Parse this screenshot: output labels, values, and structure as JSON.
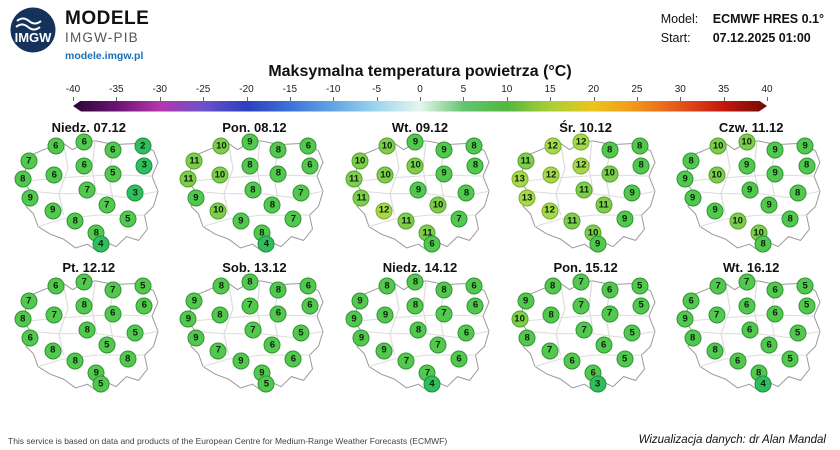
{
  "header": {
    "logo_text": "IMGW",
    "brand": "MODELE",
    "brand_sub": "IMGW-PIB",
    "brand_url": "modele.imgw.pl",
    "model_label": "Model:",
    "model_value": "ECMWF HRES 0.1°",
    "start_label": "Start:",
    "start_value": "07.12.2025 01:00"
  },
  "title": "Maksymalna temperatura powietrza (°C)",
  "colorbar": {
    "ticks": [
      -40,
      -35,
      -30,
      -25,
      -20,
      -15,
      -10,
      -5,
      0,
      5,
      10,
      15,
      20,
      25,
      30,
      35,
      40
    ],
    "stops": [
      {
        "t": -40,
        "c": "#2b0636"
      },
      {
        "t": -35,
        "c": "#6a1472"
      },
      {
        "t": -30,
        "c": "#b535ae"
      },
      {
        "t": -25,
        "c": "#6a52c9"
      },
      {
        "t": -20,
        "c": "#2b3fbf"
      },
      {
        "t": -15,
        "c": "#3d72d9"
      },
      {
        "t": -10,
        "c": "#62a6e3"
      },
      {
        "t": -5,
        "c": "#9fd6ee"
      },
      {
        "t": 0,
        "c": "#e6f5ec"
      },
      {
        "t": 5,
        "c": "#63c46f"
      },
      {
        "t": 10,
        "c": "#53b83f"
      },
      {
        "t": 15,
        "c": "#a9cf35"
      },
      {
        "t": 20,
        "c": "#ecc51c"
      },
      {
        "t": 25,
        "c": "#f1931b"
      },
      {
        "t": 30,
        "c": "#e5541b"
      },
      {
        "t": 35,
        "c": "#c5160e"
      },
      {
        "t": 40,
        "c": "#700b06"
      }
    ]
  },
  "footer": {
    "left": "This service is based on data and products of the European Centre for Medium-Range Weather Forecasts (ECMWF)",
    "right": "Wizualizacja danych: dr Alan Mandal"
  },
  "chart_data": {
    "type": "map",
    "title": "Maksymalna temperatura powietrza (°C)",
    "unit": "°C",
    "model": "ECMWF HRES 0.1°",
    "run_start": "07.12.2025 01:00",
    "scale_domain": [
      -40,
      40
    ],
    "legend_position": "top",
    "points": [
      [
        10,
        21
      ],
      [
        28,
        8
      ],
      [
        47,
        5
      ],
      [
        66,
        12
      ],
      [
        86,
        8
      ],
      [
        6,
        37
      ],
      [
        27,
        33
      ],
      [
        47,
        25
      ],
      [
        66,
        32
      ],
      [
        87,
        25
      ],
      [
        11,
        53
      ],
      [
        49,
        46
      ],
      [
        81,
        49
      ],
      [
        26,
        64
      ],
      [
        41,
        73
      ],
      [
        62,
        59
      ],
      [
        55,
        83
      ],
      [
        76,
        71
      ],
      [
        58,
        93
      ]
    ],
    "days": [
      {
        "label": "Niedz. 07.12",
        "values": [
          7,
          6,
          6,
          6,
          2,
          8,
          6,
          6,
          5,
          3,
          9,
          7,
          3,
          9,
          8,
          7,
          8,
          5,
          4
        ]
      },
      {
        "label": "Pon. 08.12",
        "values": [
          11,
          10,
          9,
          8,
          6,
          11,
          10,
          8,
          8,
          6,
          9,
          8,
          7,
          10,
          9,
          8,
          8,
          7,
          4
        ]
      },
      {
        "label": "Wt. 09.12",
        "values": [
          10,
          10,
          9,
          9,
          8,
          11,
          10,
          10,
          9,
          8,
          11,
          9,
          8,
          12,
          11,
          10,
          11,
          7,
          6
        ]
      },
      {
        "label": "Śr. 10.12",
        "values": [
          11,
          12,
          12,
          8,
          8,
          13,
          12,
          12,
          10,
          8,
          13,
          11,
          9,
          12,
          11,
          11,
          10,
          9,
          9
        ]
      },
      {
        "label": "Czw. 11.12",
        "values": [
          8,
          10,
          10,
          9,
          9,
          9,
          10,
          9,
          9,
          8,
          9,
          9,
          8,
          9,
          10,
          9,
          10,
          8,
          8
        ]
      },
      {
        "label": "Pt. 12.12",
        "values": [
          7,
          6,
          7,
          7,
          5,
          8,
          7,
          8,
          6,
          6,
          6,
          8,
          5,
          8,
          8,
          5,
          9,
          8,
          5
        ]
      },
      {
        "label": "Sob. 13.12",
        "values": [
          9,
          8,
          8,
          8,
          6,
          9,
          8,
          7,
          6,
          6,
          9,
          7,
          5,
          7,
          9,
          6,
          9,
          6,
          5
        ]
      },
      {
        "label": "Niedz. 14.12",
        "values": [
          9,
          8,
          8,
          8,
          6,
          9,
          9,
          8,
          7,
          6,
          9,
          8,
          6,
          9,
          7,
          7,
          7,
          6,
          4
        ]
      },
      {
        "label": "Pon. 15.12",
        "values": [
          9,
          8,
          7,
          6,
          5,
          10,
          8,
          7,
          7,
          5,
          8,
          7,
          5,
          7,
          6,
          6,
          6,
          5,
          3
        ]
      },
      {
        "label": "Wt. 16.12",
        "values": [
          6,
          7,
          7,
          6,
          5,
          9,
          7,
          6,
          6,
          5,
          8,
          6,
          5,
          8,
          6,
          6,
          8,
          5,
          4
        ]
      }
    ]
  }
}
